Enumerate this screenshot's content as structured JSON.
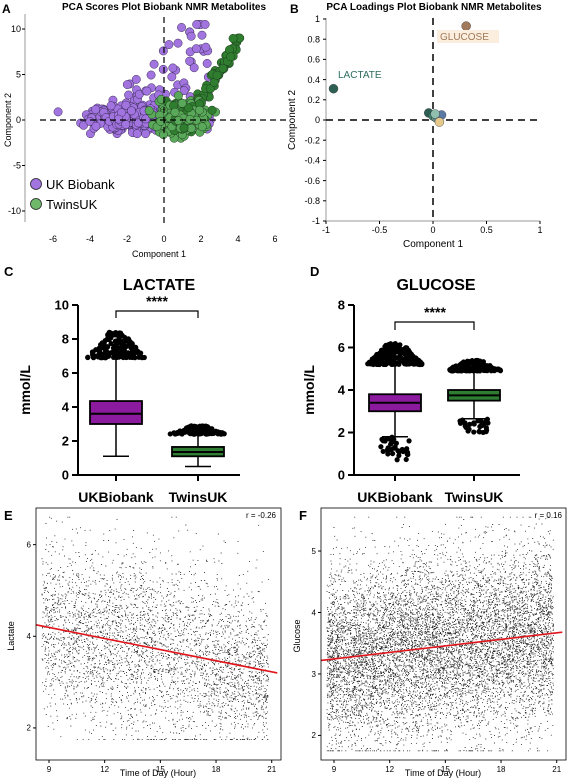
{
  "panels": {
    "A": {
      "letter": "A",
      "title": "PCA Scores Plot Biobank NMR Metabolites",
      "xlabel": "Component 1",
      "ylabel": "Component 2",
      "xticks": [
        "-6",
        "-4",
        "-2",
        "0",
        "2",
        "4",
        "6"
      ],
      "yticks": [
        "10",
        "5",
        "0",
        "-5",
        "-10"
      ],
      "legend": [
        {
          "label": "UK Biobank",
          "color": "#a274e0"
        },
        {
          "label": "TwinsUK",
          "color": "#6fb86a"
        }
      ]
    },
    "B": {
      "letter": "B",
      "title": "PCA Loadings Plot Biobank NMR Metabolites",
      "xlabel": "Component 1",
      "ylabel": "Component 2",
      "xticks": [
        "-1",
        "-0.5",
        "0",
        "0.5",
        "1"
      ],
      "yticks": [
        "1",
        "0.8",
        "0.6",
        "0.4",
        "0.2",
        "0",
        "-0.2",
        "-0.4",
        "-0.6",
        "-0.8",
        "-1"
      ],
      "labels": {
        "lactate": "LACTATE",
        "glucose": "GLUCOSE"
      }
    },
    "C": {
      "letter": "C",
      "title": "LACTATE",
      "ylabel": "mmol/L",
      "yticks": [
        "10",
        "8",
        "6",
        "4",
        "2",
        "0"
      ],
      "groups": [
        "UKBiobank",
        "TwinsUK"
      ],
      "sig": "****"
    },
    "D": {
      "letter": "D",
      "title": "GLUCOSE",
      "ylabel": "mmol/L",
      "yticks": [
        "8",
        "6",
        "4",
        "2",
        "0"
      ],
      "groups": [
        "UKBiobank",
        "TwinsUK"
      ],
      "sig": "****"
    },
    "E": {
      "letter": "E",
      "xlabel": "Time of Day (Hour)",
      "ylabel": "Lactate",
      "xticks": [
        "9",
        "12",
        "15",
        "18",
        "21"
      ],
      "yticks": [
        "6",
        "4",
        "2"
      ],
      "corr": "r = -0.26"
    },
    "F": {
      "letter": "F",
      "xlabel": "Time of Day (Hour)",
      "ylabel": "Glucose",
      "xticks": [
        "9",
        "12",
        "15",
        "18",
        "21"
      ],
      "yticks": [
        "5",
        "4",
        "3",
        "2"
      ],
      "corr": "r = 0.16"
    }
  },
  "colors": {
    "ukb_point": "#a274e0",
    "twins_point": "#5aa95a",
    "box_purple": "#8b1a9e",
    "box_green": "#2e7d32",
    "reg_line": "#e0141a",
    "glucose_label": "#a0785a",
    "lactate_label": "#2e6b5e"
  },
  "chart_data": [
    {
      "type": "scatter",
      "title": "PCA Scores Plot Biobank NMR Metabolites",
      "xlabel": "Component 1",
      "ylabel": "Component 2",
      "xlim": [
        -6,
        6
      ],
      "ylim": [
        -11,
        11
      ],
      "series": [
        {
          "name": "UK Biobank",
          "cluster_center": [
            -1.2,
            0.3
          ],
          "x_range": [
            -5.8,
            2.5
          ],
          "y_range": [
            -1.5,
            10.5
          ]
        },
        {
          "name": "TwinsUK",
          "cluster_center": [
            1.0,
            0.5
          ],
          "x_range": [
            -0.8,
            4.2
          ],
          "y_range": [
            -2,
            9
          ]
        }
      ]
    },
    {
      "type": "scatter",
      "title": "PCA Loadings Plot Biobank NMR Metabolites",
      "xlabel": "Component 1",
      "ylabel": "Component 2",
      "xlim": [
        -1,
        1
      ],
      "ylim": [
        -1,
        1
      ],
      "points": [
        {
          "label": "LACTATE",
          "x": -0.93,
          "y": 0.31,
          "color": "#2e5f55"
        },
        {
          "label": "GLUCOSE",
          "x": 0.31,
          "y": 0.93,
          "color": "#a0785a"
        },
        {
          "x": -0.04,
          "y": 0.07,
          "color": "#2e5f55"
        },
        {
          "x": 0.0,
          "y": 0.04,
          "color": "#3c7d6a"
        },
        {
          "x": 0.03,
          "y": 0.02,
          "color": "#6aa088"
        },
        {
          "x": 0.05,
          "y": 0.01,
          "color": "#7a9ab0"
        },
        {
          "x": 0.08,
          "y": 0.05,
          "color": "#5a7aa5"
        },
        {
          "x": 0.06,
          "y": -0.02,
          "color": "#e6c98a"
        },
        {
          "x": 0.02,
          "y": 0.06,
          "color": "#8fbfae"
        }
      ]
    },
    {
      "type": "box",
      "title": "LACTATE",
      "ylabel": "mmol/L",
      "ylim": [
        0,
        10
      ],
      "categories": [
        "UKBiobank",
        "TwinsUK"
      ],
      "boxes": [
        {
          "name": "UKBiobank",
          "whisker_low": 1.1,
          "q1": 3.0,
          "median": 3.6,
          "q3": 4.35,
          "whisker_high": 6.9,
          "max_outlier": 8.4
        },
        {
          "name": "TwinsUK",
          "whisker_low": 0.5,
          "q1": 1.1,
          "median": 1.35,
          "q3": 1.65,
          "whisker_high": 2.4,
          "max_outlier": 2.9
        }
      ]
    },
    {
      "type": "box",
      "title": "GLUCOSE",
      "ylabel": "mmol/L",
      "ylim": [
        0,
        8
      ],
      "categories": [
        "UKBiobank",
        "TwinsUK"
      ],
      "boxes": [
        {
          "name": "UKBiobank",
          "whisker_low": 1.8,
          "q1": 3.0,
          "median": 3.4,
          "q3": 3.8,
          "whisker_high": 5.2,
          "min_outlier": 0.7,
          "max_outlier": 6.2
        },
        {
          "name": "TwinsUK",
          "whisker_low": 2.65,
          "q1": 3.5,
          "median": 3.75,
          "q3": 4.0,
          "whisker_high": 4.9,
          "min_outlier": 2.0,
          "max_outlier": 5.4
        }
      ]
    },
    {
      "type": "scatter",
      "xlabel": "Time of Day (Hour)",
      "ylabel": "Lactate",
      "xlim": [
        8.3,
        21.5
      ],
      "ylim": [
        1.3,
        6.8
      ],
      "regression": {
        "x": [
          8.3,
          21.3
        ],
        "y": [
          4.25,
          3.2
        ]
      },
      "r": -0.26
    },
    {
      "type": "scatter",
      "xlabel": "Time of Day (Hour)",
      "ylabel": "Glucose",
      "xlim": [
        8.3,
        21.5
      ],
      "ylim": [
        1.6,
        5.7
      ],
      "regression": {
        "x": [
          8.3,
          21.3
        ],
        "y": [
          3.22,
          3.68
        ]
      },
      "r": 0.16
    }
  ]
}
